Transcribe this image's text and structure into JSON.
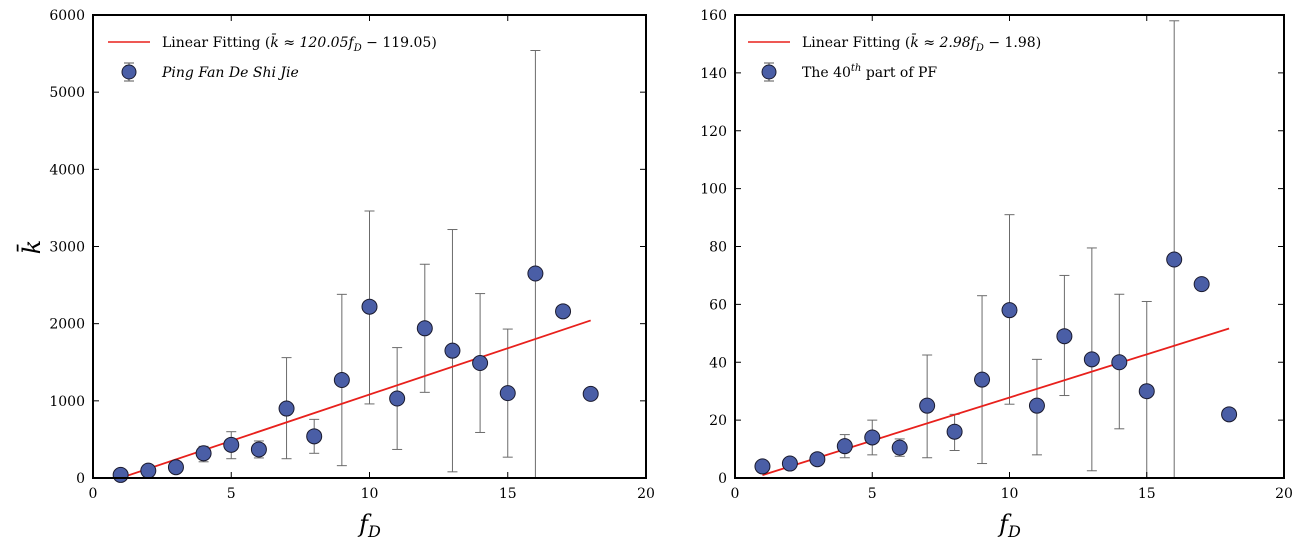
{
  "chart_data": [
    {
      "type": "scatter",
      "xlabel": "f_D",
      "ylabel": "k̄",
      "xlim": [
        0,
        20
      ],
      "ylim": [
        0,
        6000
      ],
      "xticks": [
        "0",
        "5",
        "10",
        "15",
        "20"
      ],
      "yticks": [
        "0",
        "1000",
        "2000",
        "3000",
        "4000",
        "5000",
        "6000"
      ],
      "legend_position": "top-left",
      "fit": {
        "label": "Linear Fitting (k̄ ≈ 120.05f_D − 119.05)",
        "slope": 120.05,
        "intercept": -119.05,
        "x_range": [
          1,
          18
        ],
        "color": "#e8201c"
      },
      "series": [
        {
          "name": "Ping Fan De Shi Jie",
          "marker_color": "#4a5ea6",
          "x": [
            1,
            2,
            3,
            4,
            5,
            6,
            7,
            8,
            9,
            10,
            11,
            12,
            13,
            14,
            15,
            16,
            17,
            18
          ],
          "y": [
            40,
            95,
            140,
            320,
            430,
            370,
            900,
            540,
            1270,
            2220,
            1030,
            1940,
            1650,
            1490,
            1100,
            2650,
            2160,
            1090
          ],
          "err_low": [
            0,
            0,
            0,
            210,
            250,
            260,
            250,
            320,
            160,
            960,
            370,
            1110,
            80,
            590,
            270,
            0,
            null,
            null
          ],
          "err_high": [
            0,
            0,
            0,
            410,
            600,
            480,
            1560,
            760,
            2380,
            3460,
            1690,
            2770,
            3220,
            2390,
            1930,
            5540,
            null,
            null
          ]
        }
      ]
    },
    {
      "type": "scatter",
      "xlabel": "f_D",
      "ylabel": "",
      "xlim": [
        0,
        20
      ],
      "ylim": [
        0,
        160
      ],
      "xticks": [
        "0",
        "5",
        "10",
        "15",
        "20"
      ],
      "yticks": [
        "0",
        "20",
        "40",
        "60",
        "80",
        "100",
        "120",
        "140",
        "160"
      ],
      "legend_position": "top-left",
      "fit": {
        "label": "Linear Fitting (k̄ ≈ 2.98f_D − 1.98)",
        "slope": 2.98,
        "intercept": -1.98,
        "x_range": [
          1,
          18
        ],
        "color": "#e8201c"
      },
      "series": [
        {
          "name": "The 40th part of PF",
          "marker_color": "#4a5ea6",
          "x": [
            1,
            2,
            3,
            4,
            5,
            6,
            7,
            8,
            9,
            10,
            11,
            12,
            13,
            14,
            15,
            16,
            17,
            18
          ],
          "y": [
            4,
            5,
            6.5,
            11,
            14,
            10.5,
            25,
            16,
            34,
            58,
            25,
            49,
            41,
            40,
            30,
            75.5,
            67,
            22
          ],
          "err_low": [
            null,
            null,
            null,
            7,
            8,
            7.5,
            7,
            9.5,
            5,
            25.5,
            8,
            28.5,
            2.5,
            17,
            0,
            0,
            null,
            null
          ],
          "err_high": [
            null,
            null,
            null,
            15,
            20,
            13.5,
            42.5,
            22,
            63,
            91,
            41,
            70,
            79.5,
            63.5,
            61,
            158,
            null,
            null
          ]
        }
      ]
    }
  ],
  "legends": [
    {
      "fit_prefix": "Linear Fitting (",
      "fit_expr": "k̄ ≈ 120.05f",
      "fit_sub": "D",
      "fit_suffix": " − 119.05)",
      "series_text": "Ping Fan De Shi Jie"
    },
    {
      "fit_prefix": "Linear Fitting (",
      "fit_expr": "k̄ ≈ 2.98f",
      "fit_sub": "D",
      "fit_suffix": " − 1.98)",
      "series_pre": "The 40",
      "series_sup": "th",
      "series_post": " part of PF"
    }
  ],
  "axis_text": {
    "x_main": "f",
    "x_sub": "D",
    "y_main": "k̄"
  }
}
